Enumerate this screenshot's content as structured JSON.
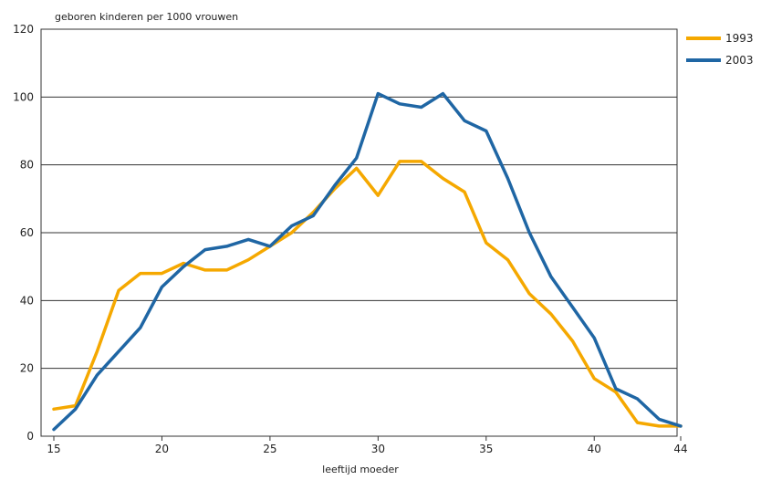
{
  "chart_data": {
    "type": "line",
    "ylabel": "geboren kinderen per 1000 vrouwen",
    "xlabel": "leeftijd moeder",
    "x": [
      15,
      16,
      17,
      18,
      19,
      20,
      21,
      22,
      23,
      24,
      25,
      26,
      27,
      28,
      29,
      30,
      31,
      32,
      33,
      34,
      35,
      36,
      37,
      38,
      39,
      40,
      41,
      42,
      43,
      44
    ],
    "xticks": [
      "15",
      "20",
      "25",
      "30",
      "35",
      "40",
      "44"
    ],
    "xtick_values": [
      15,
      20,
      25,
      30,
      35,
      40,
      44
    ],
    "yticks": [
      "0",
      "20",
      "40",
      "60",
      "80",
      "100",
      "120"
    ],
    "ytick_values": [
      0,
      20,
      40,
      60,
      80,
      100,
      120
    ],
    "xlim": [
      15,
      44
    ],
    "ylim": [
      0,
      120
    ],
    "grid": "horizontal",
    "legend_position": "top-right",
    "series": [
      {
        "name": "1993",
        "color": "#f5a800",
        "values": [
          8,
          9,
          25,
          43,
          48,
          48,
          51,
          49,
          49,
          52,
          56,
          60,
          66,
          73,
          79,
          71,
          81,
          81,
          76,
          72,
          57,
          52,
          42,
          36,
          28,
          17,
          13,
          4,
          3,
          3
        ]
      },
      {
        "name": "2003",
        "color": "#1f66a4",
        "values": [
          2,
          8,
          18,
          25,
          32,
          44,
          50,
          55,
          56,
          58,
          56,
          62,
          65,
          74,
          82,
          101,
          98,
          97,
          101,
          93,
          90,
          76,
          60,
          47,
          38,
          29,
          14,
          11,
          5,
          3
        ]
      }
    ]
  }
}
